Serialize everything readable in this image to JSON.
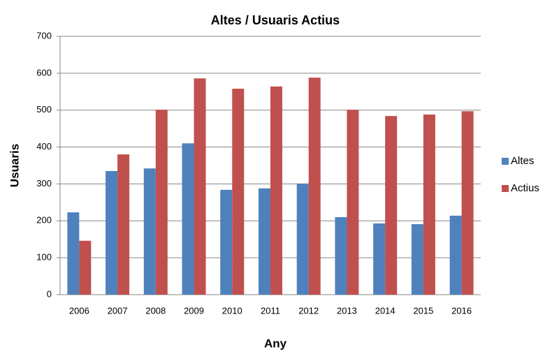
{
  "chart_data": {
    "type": "bar",
    "title": "Altes / Usuaris Actius",
    "x_label": "Any",
    "y_label": "Usuaris",
    "categories": [
      "2006",
      "2007",
      "2008",
      "2009",
      "2010",
      "2011",
      "2012",
      "2013",
      "2014",
      "2015",
      "2016"
    ],
    "series": [
      {
        "name": "Altes",
        "color": "#4f81bd",
        "values": [
          223,
          335,
          342,
          410,
          284,
          288,
          301,
          210,
          193,
          191,
          214
        ]
      },
      {
        "name": "Actius",
        "color": "#c0504d",
        "values": [
          146,
          380,
          501,
          586,
          558,
          564,
          588,
          501,
          484,
          488,
          497
        ]
      }
    ],
    "ylim": [
      0,
      700
    ],
    "yticks": [
      0,
      100,
      200,
      300,
      400,
      500,
      600,
      700
    ],
    "grid": true,
    "legend": "right"
  }
}
